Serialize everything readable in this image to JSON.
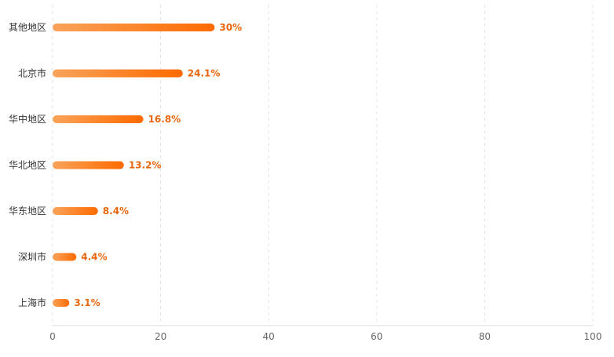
{
  "chart_data": {
    "type": "bar",
    "orientation": "horizontal",
    "categories": [
      "其他地区",
      "北京市",
      "华中地区",
      "华北地区",
      "华东地区",
      "深圳市",
      "上海市"
    ],
    "values": [
      30,
      24.1,
      16.8,
      13.2,
      8.4,
      4.4,
      3.1
    ],
    "value_labels": [
      "30%",
      "24.1%",
      "16.8%",
      "13.2%",
      "8.4%",
      "4.4%",
      "3.1%"
    ],
    "xlim": [
      0,
      100
    ],
    "xticks": [
      0,
      20,
      40,
      60,
      80,
      100
    ],
    "grid": "vertical dashed",
    "colors": {
      "bar_start": "#f9a35a",
      "bar_end": "#ff6a00",
      "label": "#e8670e"
    }
  }
}
